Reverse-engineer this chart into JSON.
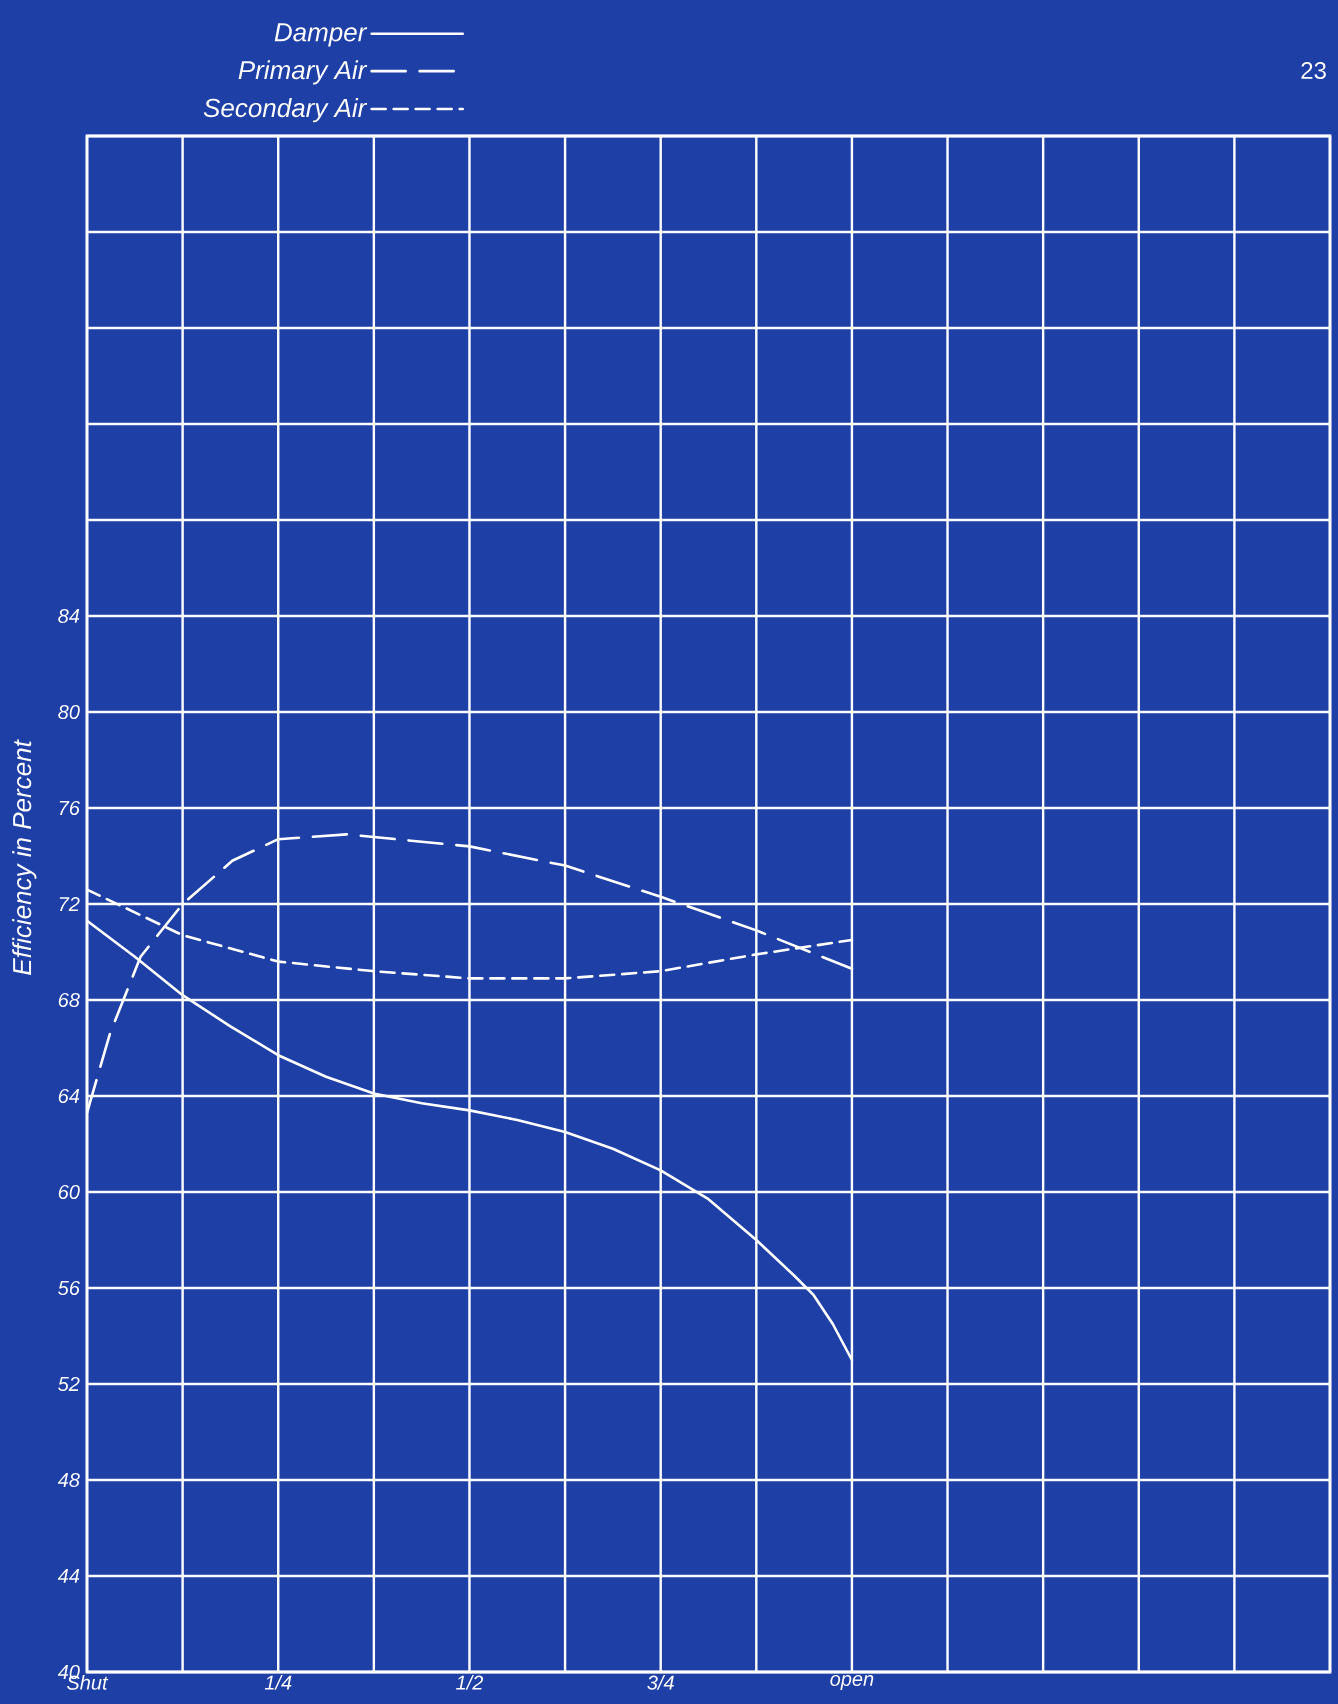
{
  "chart_data": {
    "type": "line",
    "ylabel": "Efficiency in Percent",
    "annotations": [
      "23"
    ],
    "series": [
      {
        "name": "Damper",
        "color": "#ffffff",
        "line_style": "solid",
        "x": [
          0,
          0.0625,
          0.125,
          0.1875,
          0.25,
          0.3125,
          0.375,
          0.4375,
          0.5,
          0.5625,
          0.625,
          0.6875,
          0.75,
          0.8125,
          0.875,
          0.925,
          0.95,
          0.975,
          1.0
        ],
        "values": [
          71.3,
          69.8,
          68.2,
          66.9,
          65.7,
          64.8,
          64.1,
          63.7,
          63.4,
          63.0,
          62.5,
          61.8,
          60.9,
          59.7,
          58.0,
          56.5,
          55.7,
          54.5,
          53.0
        ]
      },
      {
        "name": "Primary Air",
        "color": "#ffffff",
        "line_style": "dashed",
        "x": [
          0,
          0.03,
          0.07,
          0.125,
          0.19,
          0.25,
          0.34,
          0.5,
          0.625,
          0.75,
          0.875,
          1.0
        ],
        "values": [
          63.3,
          66.6,
          69.8,
          72.0,
          73.8,
          74.7,
          74.9,
          74.4,
          73.6,
          72.3,
          70.9,
          69.3
        ]
      },
      {
        "name": "Secondary Air",
        "color": "#ffffff",
        "line_style": "dashed",
        "x": [
          0,
          0.125,
          0.25,
          0.375,
          0.5,
          0.625,
          0.75,
          0.875,
          1.0
        ],
        "values": [
          72.6,
          70.7,
          69.6,
          69.2,
          68.9,
          68.9,
          69.2,
          69.9,
          70.5
        ]
      }
    ],
    "xlim": [
      0,
      1.625
    ],
    "ylim": [
      40,
      104
    ],
    "xticks": [
      {
        "value": 0,
        "label": "Shut"
      },
      {
        "value": 0.125,
        "label": null
      },
      {
        "value": 0.25,
        "label": "1/4"
      },
      {
        "value": 0.375,
        "label": null
      },
      {
        "value": 0.5,
        "label": "1/2"
      },
      {
        "value": 0.625,
        "label": null
      },
      {
        "value": 0.75,
        "label": "3/4"
      },
      {
        "value": 0.875,
        "label": null
      },
      {
        "value": 1.0,
        "label": "open"
      },
      {
        "value": 1.125,
        "label": null
      },
      {
        "value": 1.25,
        "label": null
      },
      {
        "value": 1.375,
        "label": null
      },
      {
        "value": 1.5,
        "label": null
      },
      {
        "value": 1.625,
        "label": null
      }
    ],
    "yticks": [
      40,
      44,
      48,
      52,
      56,
      60,
      64,
      68,
      72,
      76,
      80,
      84,
      {
        "value": 88,
        "label": null
      },
      {
        "value": 92,
        "label": null
      },
      {
        "value": 96,
        "label": null
      },
      {
        "value": 100,
        "label": null
      },
      {
        "value": 104,
        "label": null
      }
    ],
    "grid": true,
    "legend": "top left"
  }
}
